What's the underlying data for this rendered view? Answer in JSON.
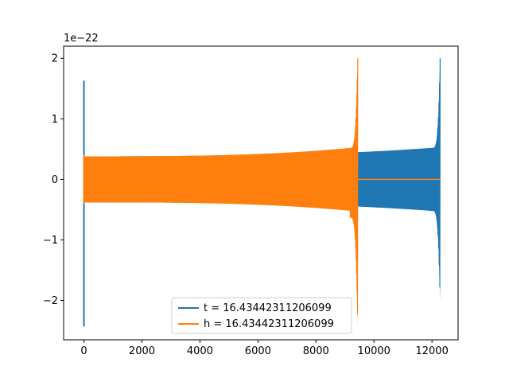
{
  "chart_data": {
    "type": "line",
    "title": "",
    "xlabel": "",
    "ylabel": "",
    "y_offset_text": "1e−22",
    "xlim": [
      -700,
      12900
    ],
    "ylim": [
      -2.65,
      2.2
    ],
    "x_ticks": [
      {
        "value": 0,
        "label": "0"
      },
      {
        "value": 2000,
        "label": "2000"
      },
      {
        "value": 4000,
        "label": "4000"
      },
      {
        "value": 6000,
        "label": "6000"
      },
      {
        "value": 8000,
        "label": "8000"
      },
      {
        "value": 10000,
        "label": "10000"
      },
      {
        "value": 12000,
        "label": "12000"
      }
    ],
    "y_ticks": [
      {
        "value": 2,
        "label": "2"
      },
      {
        "value": 1,
        "label": "1"
      },
      {
        "value": 0,
        "label": "0"
      },
      {
        "value": -1,
        "label": "−1"
      },
      {
        "value": -2,
        "label": "−2"
      }
    ],
    "grid": false,
    "legend_position": "lower-center",
    "series": [
      {
        "name": "t = 16.43442311206099",
        "color": "#1f77b4",
        "shape": "chirp",
        "start_spike": {
          "x": 0,
          "max": 1.63,
          "min": -2.43
        },
        "x_start": 0,
        "x_end": 12280,
        "amplitude_start": 0.38,
        "amplitude_near_merger": 0.53,
        "merger_x": 12280,
        "peak_max": 2.0,
        "peak_min": -2.0
      },
      {
        "name": "h = 16.43442311206099",
        "color": "#ff7f0e",
        "shape": "chirp",
        "start_spike": {
          "x": 0,
          "max": 0.4,
          "min": -0.4
        },
        "x_start": 0,
        "x_end": 9440,
        "amplitude_start": 0.38,
        "amplitude_near_merger": 0.53,
        "merger_x": 9440,
        "peak_max": 2.0,
        "peak_min": -2.43,
        "flat_after": {
          "x_start": 9440,
          "x_end": 12280,
          "value": 0
        }
      }
    ]
  }
}
